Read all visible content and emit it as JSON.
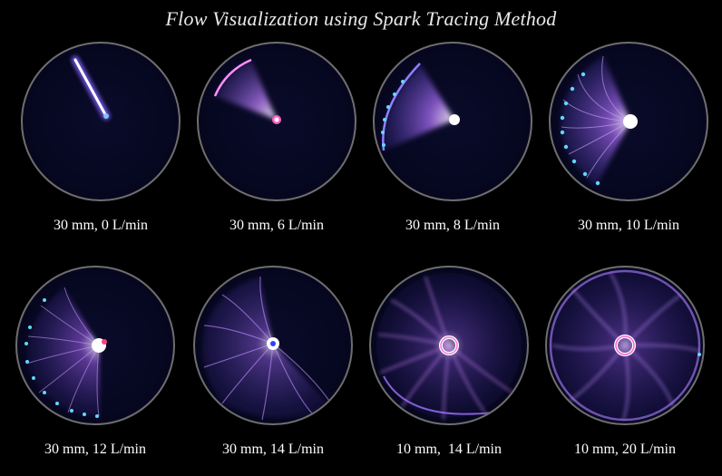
{
  "title": "Flow Visualization using Spark Tracing Method",
  "panels": [
    {
      "caption": "30 mm, 0 L/min"
    },
    {
      "caption": "30 mm, 6 L/min"
    },
    {
      "caption": "30 mm, 8 L/min"
    },
    {
      "caption": "30 mm, 10 L/min"
    },
    {
      "caption": "30 mm, 12 L/min"
    },
    {
      "caption": "30 mm, 14 L/min"
    },
    {
      "caption": "10 mm,  14 L/min"
    },
    {
      "caption": "10 mm, 20 L/min"
    }
  ],
  "colors": {
    "background": "#000000",
    "disc": "#060720",
    "spark_core": "#ffffff",
    "spark_glow": "#b070ff",
    "spark_tip": "#40d0ff"
  }
}
